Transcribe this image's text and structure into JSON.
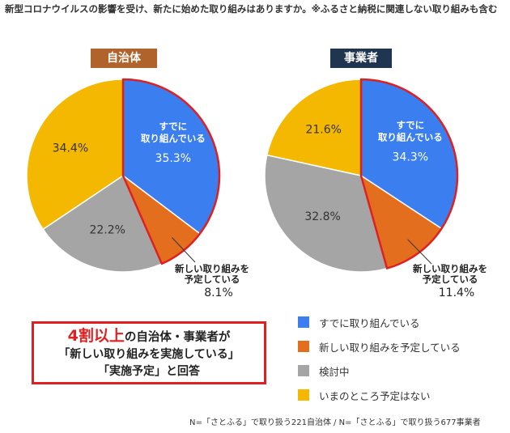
{
  "question": "新型コロナウイルスの影響を受け、新たに始めた取り組みはありますか。※ふるさと納税に関連しない取り組みも含む",
  "legend": [
    {
      "label": "すでに取り組んでいる",
      "color": "#3a7ef0"
    },
    {
      "label": "新しい取り組みを予定している",
      "color": "#e36f1e"
    },
    {
      "label": "検討中",
      "color": "#a5a5a5"
    },
    {
      "label": "いまのところ予定はない",
      "color": "#f5b800"
    }
  ],
  "callout": {
    "highlight": "4割以上",
    "line1_rest": "の自治体・事業者が",
    "line2": "「新しい取り組みを実施している」",
    "line3": "「実施予定」と回答"
  },
  "footnote": "N=「さとふる」で取り扱う221自治体 / N=「さとふる」で取り扱う677事業者",
  "chart_data": [
    {
      "type": "pie",
      "title": "自治体",
      "categories": [
        "すでに取り組んでいる",
        "新しい取り組みを予定している",
        "検討中",
        "いまのところ予定はない"
      ],
      "values": [
        35.3,
        8.1,
        22.2,
        34.4
      ],
      "labels": [
        "35.3%",
        "8.1%",
        "22.2%",
        "34.4%"
      ],
      "inner_label": [
        "すでに",
        "取り組んでいる"
      ],
      "callout_label": [
        "新しい取り組みを",
        "予定している"
      ],
      "highlight_color": "#e02020"
    },
    {
      "type": "pie",
      "title": "事業者",
      "categories": [
        "すでに取り組んでいる",
        "新しい取り組みを予定している",
        "検討中",
        "いまのところ予定はない"
      ],
      "values": [
        34.3,
        11.4,
        32.8,
        21.6
      ],
      "labels": [
        "34.3%",
        "11.4%",
        "32.8%",
        "21.6%"
      ],
      "inner_label": [
        "すでに",
        "取り組んでいる"
      ],
      "callout_label": [
        "新しい取り組みを",
        "予定している"
      ],
      "highlight_color": "#e02020"
    }
  ]
}
